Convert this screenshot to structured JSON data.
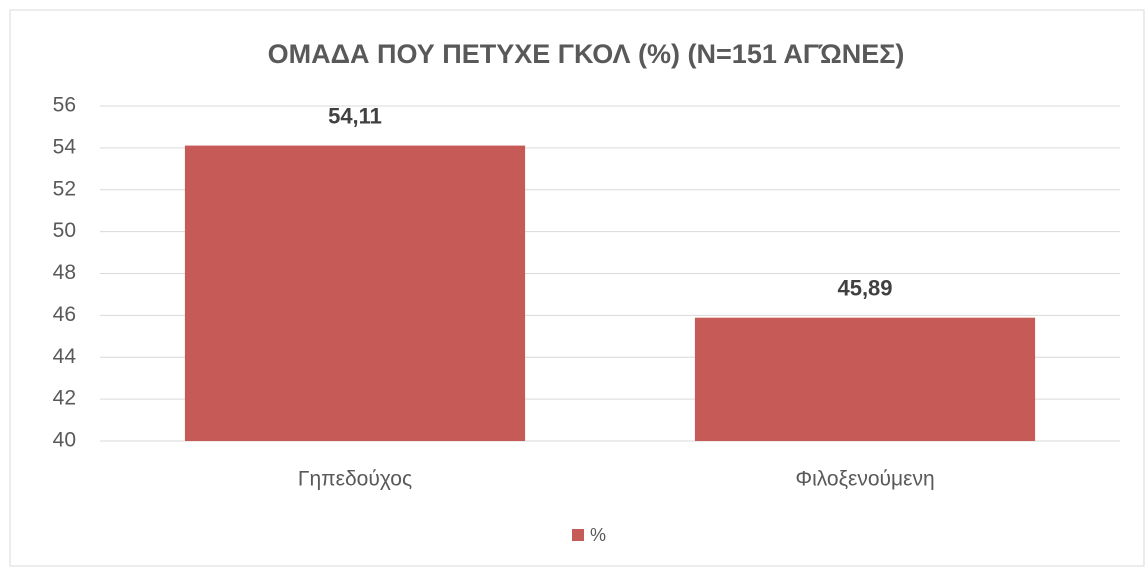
{
  "chart_data": {
    "type": "bar",
    "title": "ΟΜΑΔΑ ΠΟΥ ΠΕΤΥΧΕ ΓΚΟΛ (%) (Ν=151 ΑΓΏΝΕΣ)",
    "categories": [
      "Γηπεδούχος",
      "Φιλοξενούμενη"
    ],
    "series": [
      {
        "name": "%",
        "color": "#c55a56",
        "values": [
          54.11,
          45.89
        ],
        "value_labels": [
          "54,11",
          "45,89"
        ]
      }
    ],
    "ylim": [
      40,
      56
    ],
    "yticks": [
      40,
      42,
      44,
      46,
      48,
      50,
      52,
      54,
      56
    ],
    "grid": true,
    "legend": "bottom"
  }
}
